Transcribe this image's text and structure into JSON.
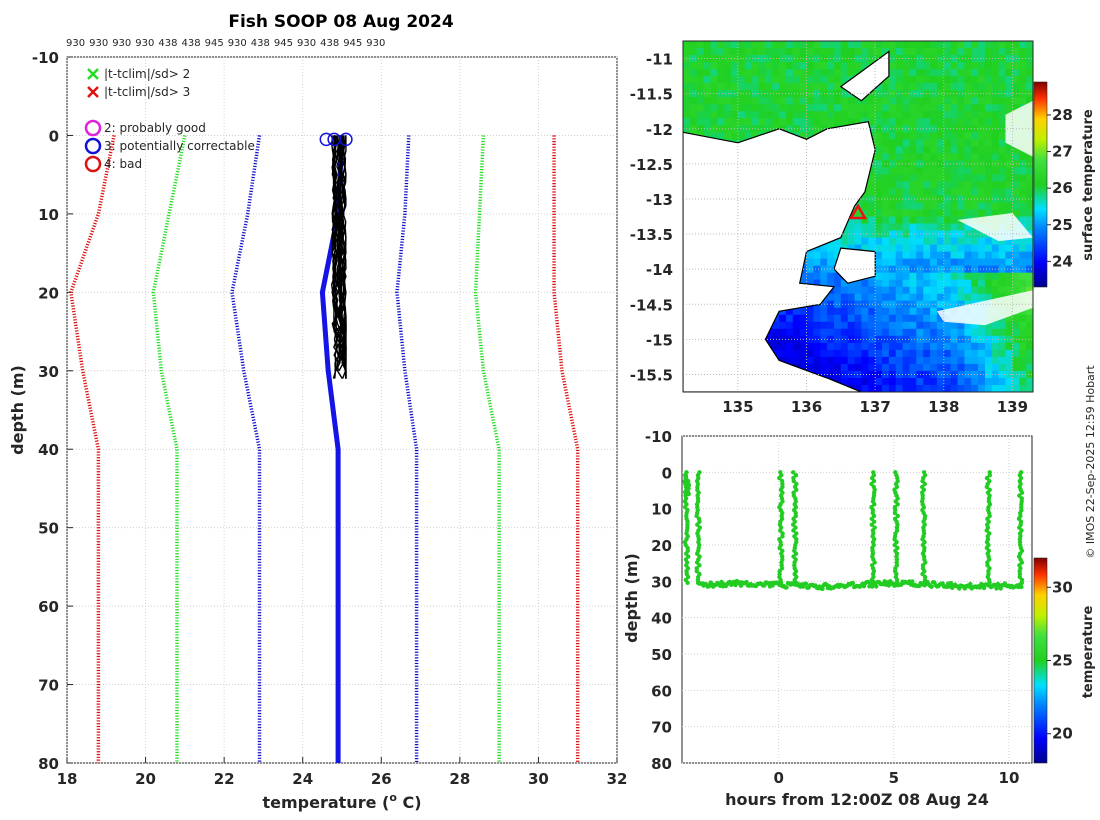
{
  "title": "Fish SOOP 08 Aug 2024",
  "copyright": "© IMOS 22-Sep-2025 12:59 Hobart",
  "profile_ids": [
    "930",
    "930",
    "930",
    "930",
    "438",
    "438",
    "945",
    "930",
    "438",
    "945",
    "930",
    "438",
    "945",
    "930"
  ],
  "chart_data": [
    {
      "type": "line",
      "name": "temperature-depth-profiles",
      "xlabel": "temperature (° C)",
      "xlabel_main": "temperature (",
      "xlabel_sup": "o",
      "xlabel_end": " C)",
      "ylabel": "depth (m)",
      "xlim": [
        18,
        32
      ],
      "ylim": [
        -10,
        80
      ],
      "xticks": [
        18,
        20,
        22,
        24,
        26,
        28,
        30,
        32
      ],
      "yticks": [
        -10,
        0,
        10,
        20,
        30,
        40,
        50,
        60,
        70,
        80
      ],
      "legend": [
        {
          "marker": "x",
          "color": "#22dd22",
          "label": "|t-tclim|/sd> 2"
        },
        {
          "marker": "x",
          "color": "#dd1111",
          "label": "|t-tclim|/sd> 3"
        },
        {
          "marker": "o",
          "color": "#dd22dd",
          "label": "2: probably good"
        },
        {
          "marker": "o",
          "color": "#1111dd",
          "label": "3: potentially correctable"
        },
        {
          "marker": "o",
          "color": "#dd1111",
          "label": "4: bad"
        }
      ],
      "climatology": {
        "depth": [
          0,
          10,
          20,
          30,
          40,
          50,
          60,
          70,
          80
        ],
        "mean": [
          25.0,
          24.9,
          24.5,
          24.65,
          24.9,
          24.9,
          24.9,
          24.9,
          24.9
        ],
        "minus3sd": [
          19.2,
          18.8,
          18.1,
          18.4,
          18.8,
          18.8,
          18.8,
          18.8,
          18.8
        ],
        "minus2sd": [
          21.0,
          20.6,
          20.2,
          20.4,
          20.8,
          20.8,
          20.8,
          20.8,
          20.8
        ],
        "minus1sd": [
          22.9,
          22.6,
          22.2,
          22.5,
          22.9,
          22.9,
          22.9,
          22.9,
          22.9
        ],
        "plus1sd": [
          26.7,
          26.6,
          26.4,
          26.6,
          26.9,
          26.9,
          26.9,
          26.9,
          26.9
        ],
        "plus2sd": [
          28.6,
          28.5,
          28.4,
          28.6,
          29.0,
          29.0,
          29.0,
          29.0,
          29.0
        ],
        "plus3sd": [
          30.4,
          30.4,
          30.4,
          30.6,
          31.0,
          31.0,
          31.0,
          31.0,
          31.0
        ]
      },
      "observed_depth_range": [
        0,
        32
      ],
      "observed_temp_range": [
        24.5,
        25.1
      ],
      "flag_markers": [
        {
          "depth": 0.5,
          "temp": 24.6,
          "flag": 3
        },
        {
          "depth": 0.5,
          "temp": 24.8,
          "flag": 3
        },
        {
          "depth": 0.5,
          "temp": 25.1,
          "flag": 3
        }
      ]
    },
    {
      "type": "heatmap",
      "name": "surface-temperature-map",
      "xlim": [
        134.2,
        139.3
      ],
      "ylim": [
        -15.75,
        -10.75
      ],
      "xticks": [
        135,
        136,
        137,
        138,
        139
      ],
      "yticks": [
        -11,
        -11.5,
        -12,
        -12.5,
        -13,
        -13.5,
        -14,
        -14.5,
        -15,
        -15.5
      ],
      "station": {
        "lon": 136.75,
        "lat": -13.2
      },
      "colorbar_label": "surface temperature",
      "colorbar_range": [
        23.3,
        28.9
      ],
      "colorbar_ticks": [
        24,
        25,
        26,
        27,
        28
      ]
    },
    {
      "type": "scatter",
      "name": "depth-time-series",
      "xlabel": "hours from 12:00Z 08 Aug 24",
      "ylabel": "depth (m)",
      "xlim": [
        -4.2,
        11
      ],
      "ylim": [
        -10,
        80
      ],
      "xticks": [
        0,
        5,
        10
      ],
      "yticks": [
        -10,
        0,
        10,
        20,
        30,
        40,
        50,
        60,
        70,
        80
      ],
      "bottom_depth_m": 31,
      "surface_casts_hours": [
        -4.0,
        -3.5,
        0.1,
        0.7,
        4.1,
        5.1,
        6.3,
        9.1,
        10.5
      ],
      "colorbar_label": "temperature",
      "colorbar_range": [
        18,
        32
      ],
      "colorbar_ticks": [
        20,
        25,
        30
      ]
    }
  ]
}
